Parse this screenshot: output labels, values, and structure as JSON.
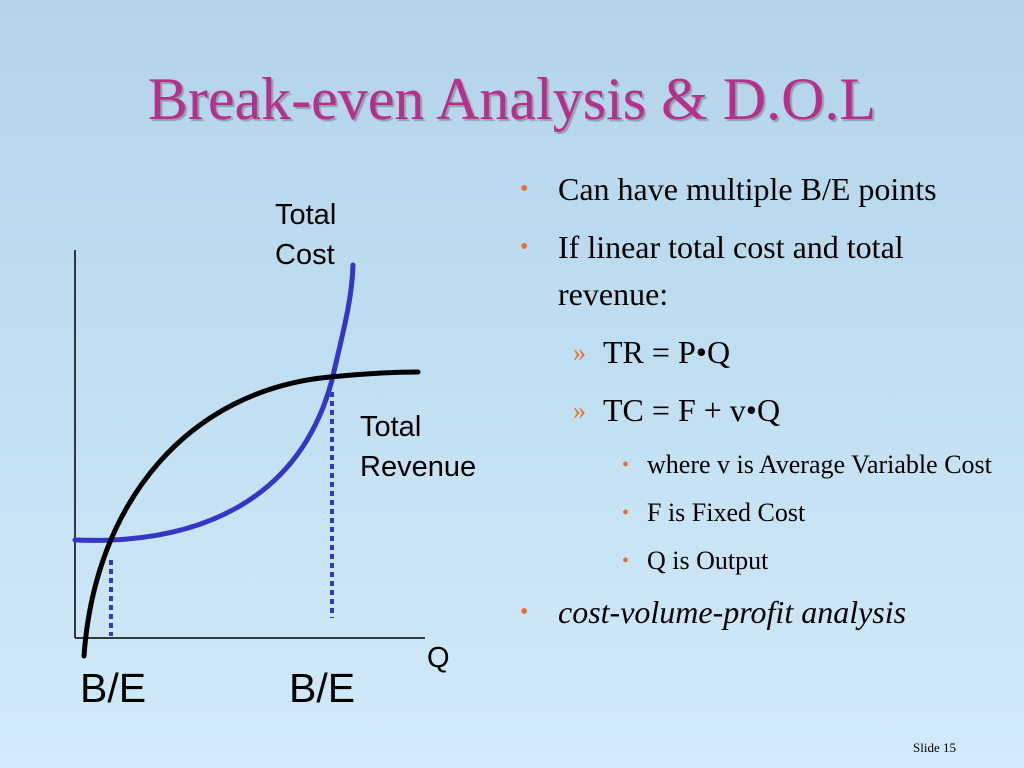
{
  "title": "Break-even Analysis & D.O.L",
  "diagram": {
    "curve_label_cost_line1": "Total",
    "curve_label_cost_line2": "Cost",
    "curve_label_revenue_line1": "Total",
    "curve_label_revenue_line2": "Revenue",
    "x_axis_label": "Q",
    "breakeven_label_1": "B/E",
    "breakeven_label_2": "B/E",
    "colors": {
      "cost_curve": "#3535c8",
      "revenue_curve": "#000000",
      "breakeven_marker": "#3535c8",
      "axis": "#000000"
    }
  },
  "bullets": {
    "item1": "Can have multiple B/E points",
    "item2": "If linear total cost and total revenue:",
    "item2_sub1": "TR = P•Q",
    "item2_sub2": "TC = F + v•Q",
    "item2_sub2_note1": "where v is Average Variable Cost",
    "item2_sub2_note2": "F is Fixed Cost",
    "item2_sub2_note3": "Q is Output",
    "item3": "cost-volume-profit analysis",
    "marker_level1": "•",
    "marker_level2": "»",
    "marker_level3": "•",
    "marker_color": "#e8702a"
  },
  "footer": {
    "slide_label": "Slide 15"
  }
}
